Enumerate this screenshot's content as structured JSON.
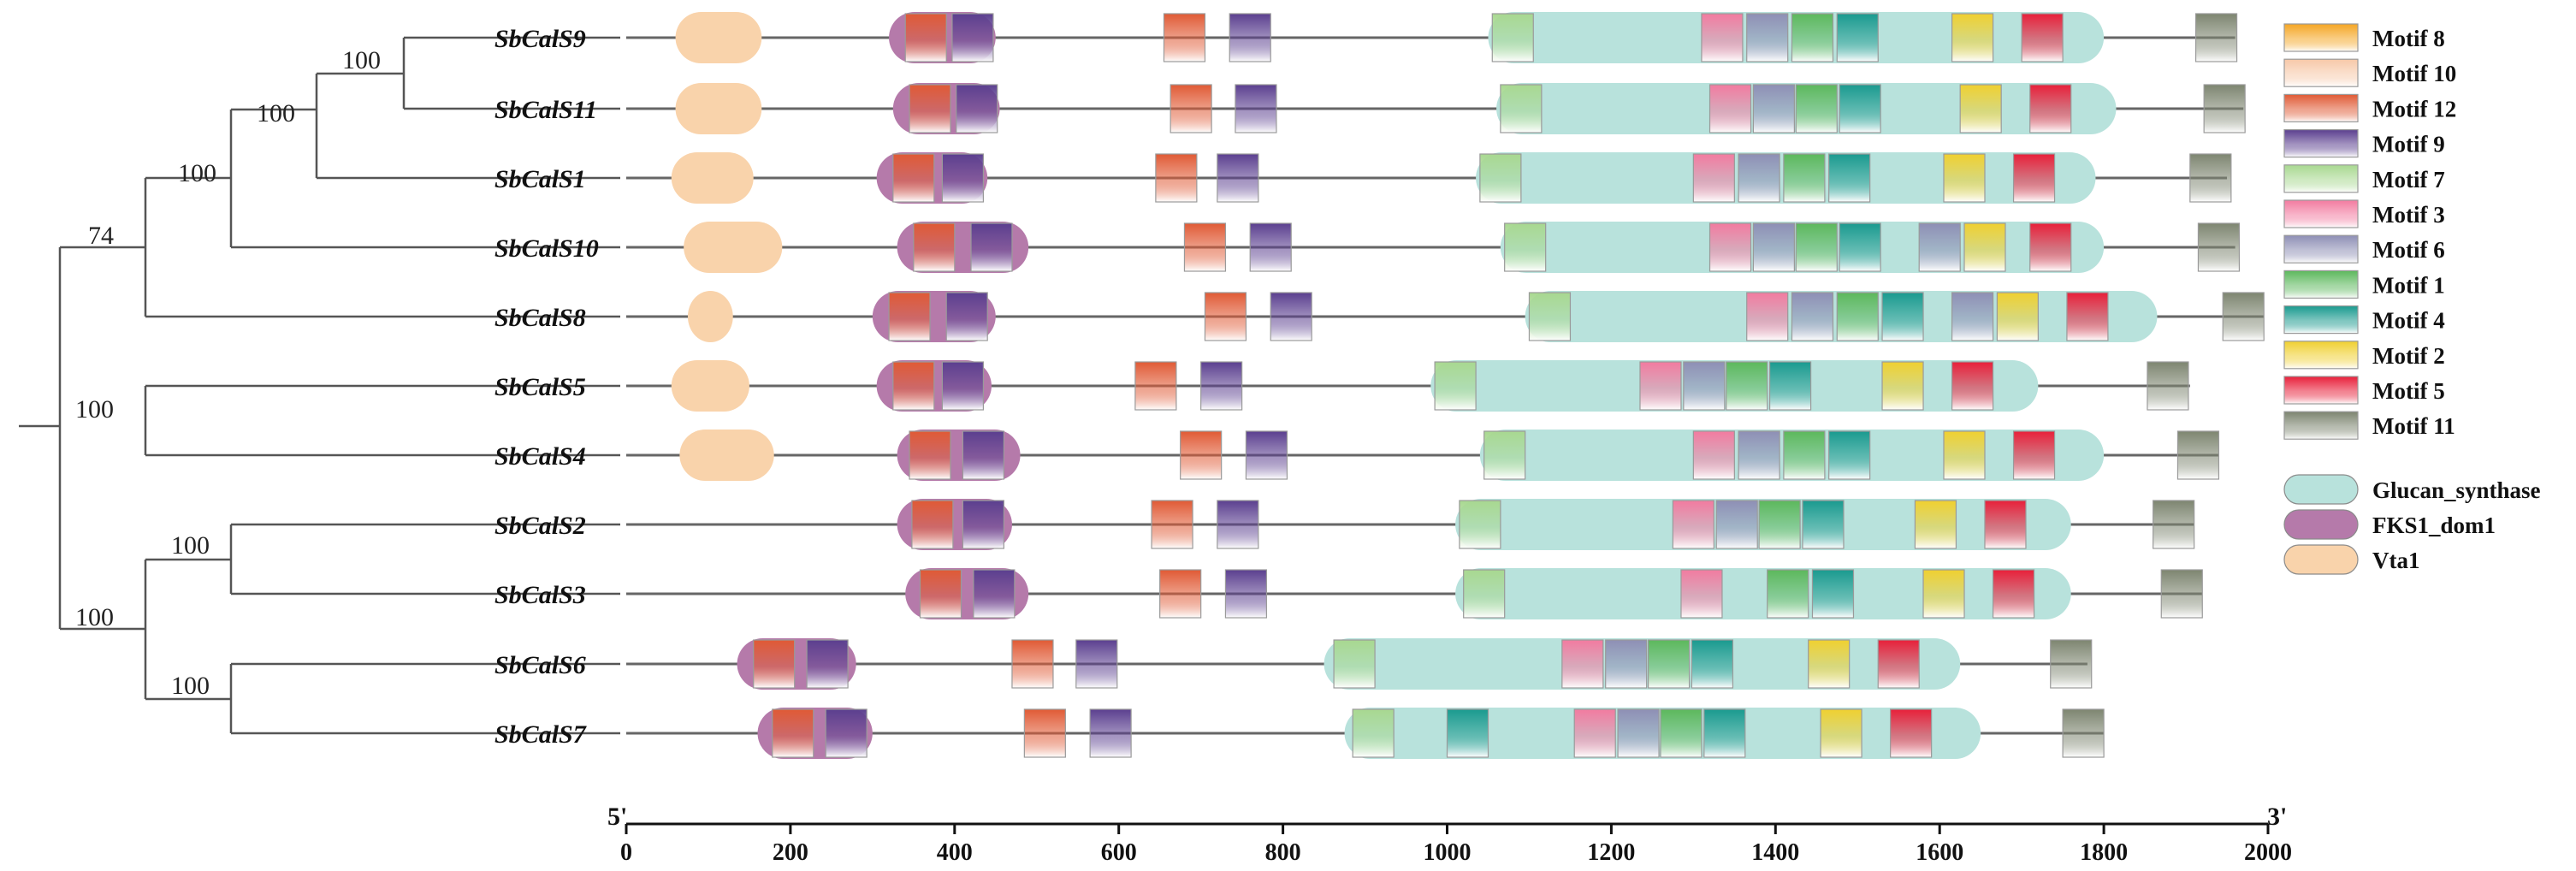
{
  "figure": {
    "axis": {
      "start": 0,
      "end": 2000,
      "tick_step": 200,
      "tick_labels": [
        "0",
        "200",
        "400",
        "600",
        "800",
        "1000",
        "1200",
        "1400",
        "1600",
        "1800",
        "2000"
      ],
      "five_prime_label": "5'",
      "three_prime_label": "3'"
    },
    "tree": {
      "bootstrap_values": {
        "node_s9_s11": "100",
        "node_s1": "100",
        "node_s10": "100",
        "node_s8": "74",
        "node_s5_s4": "100",
        "node_s2_s3": "100",
        "node_s6_s7": "100",
        "node_lower": "100"
      }
    },
    "legend": {
      "motifs": [
        {
          "name": "Motif 8",
          "color": "#f5a623"
        },
        {
          "name": "Motif 10",
          "color": "#f7c8a8"
        },
        {
          "name": "Motif 12",
          "color": "#e05a35"
        },
        {
          "name": "Motif 9",
          "color": "#5b3f8f"
        },
        {
          "name": "Motif 7",
          "color": "#a8d890"
        },
        {
          "name": "Motif 3",
          "color": "#f27ba0"
        },
        {
          "name": "Motif 6",
          "color": "#8e8fb5"
        },
        {
          "name": "Motif 1",
          "color": "#5cb85c"
        },
        {
          "name": "Motif 4",
          "color": "#1a9a8f"
        },
        {
          "name": "Motif 2",
          "color": "#f0d030"
        },
        {
          "name": "Motif 5",
          "color": "#e8203a"
        },
        {
          "name": "Motif 11",
          "color": "#7d8570"
        }
      ],
      "domains": [
        {
          "name": "Glucan_synthase",
          "color": "#b8e2dc"
        },
        {
          "name": "FKS1_dom1",
          "color": "#b57aaa"
        },
        {
          "name": "Vta1",
          "color": "#f9d3ab"
        }
      ]
    },
    "proteins": [
      {
        "name": "SbCalS9",
        "length": 1960,
        "domains": [
          {
            "type": "Vta1",
            "start": 60,
            "end": 165
          },
          {
            "type": "FKS1_dom1",
            "start": 320,
            "end": 450
          },
          {
            "type": "Glucan_synthase",
            "start": 1050,
            "end": 1800
          }
        ],
        "motifs": [
          {
            "m": "Motif 12",
            "pos": 340
          },
          {
            "m": "Motif 9",
            "pos": 397
          },
          {
            "m": "Motif 12",
            "pos": 655
          },
          {
            "m": "Motif 9",
            "pos": 735
          },
          {
            "m": "Motif 7",
            "pos": 1055
          },
          {
            "m": "Motif 3",
            "pos": 1310
          },
          {
            "m": "Motif 6",
            "pos": 1365
          },
          {
            "m": "Motif 1",
            "pos": 1420
          },
          {
            "m": "Motif 4",
            "pos": 1475
          },
          {
            "m": "Motif 2",
            "pos": 1615
          },
          {
            "m": "Motif 5",
            "pos": 1700
          },
          {
            "m": "Motif 11",
            "pos": 1912
          }
        ]
      },
      {
        "name": "SbCalS11",
        "length": 1970,
        "domains": [
          {
            "type": "Vta1",
            "start": 60,
            "end": 165
          },
          {
            "type": "FKS1_dom1",
            "start": 325,
            "end": 455
          },
          {
            "type": "Glucan_synthase",
            "start": 1060,
            "end": 1815
          }
        ],
        "motifs": [
          {
            "m": "Motif 12",
            "pos": 345
          },
          {
            "m": "Motif 9",
            "pos": 402
          },
          {
            "m": "Motif 12",
            "pos": 663
          },
          {
            "m": "Motif 9",
            "pos": 742
          },
          {
            "m": "Motif 7",
            "pos": 1065
          },
          {
            "m": "Motif 3",
            "pos": 1320
          },
          {
            "m": "Motif 6",
            "pos": 1373
          },
          {
            "m": "Motif 1",
            "pos": 1425
          },
          {
            "m": "Motif 4",
            "pos": 1478
          },
          {
            "m": "Motif 2",
            "pos": 1625
          },
          {
            "m": "Motif 5",
            "pos": 1710
          },
          {
            "m": "Motif 11",
            "pos": 1922
          }
        ]
      },
      {
        "name": "SbCalS1",
        "length": 1950,
        "domains": [
          {
            "type": "Vta1",
            "start": 55,
            "end": 155
          },
          {
            "type": "FKS1_dom1",
            "start": 305,
            "end": 440
          },
          {
            "type": "Glucan_synthase",
            "start": 1035,
            "end": 1790
          }
        ],
        "motifs": [
          {
            "m": "Motif 12",
            "pos": 325
          },
          {
            "m": "Motif 9",
            "pos": 385
          },
          {
            "m": "Motif 12",
            "pos": 645
          },
          {
            "m": "Motif 9",
            "pos": 720
          },
          {
            "m": "Motif 7",
            "pos": 1040
          },
          {
            "m": "Motif 3",
            "pos": 1300
          },
          {
            "m": "Motif 6",
            "pos": 1355
          },
          {
            "m": "Motif 1",
            "pos": 1410
          },
          {
            "m": "Motif 4",
            "pos": 1465
          },
          {
            "m": "Motif 2",
            "pos": 1605
          },
          {
            "m": "Motif 5",
            "pos": 1690
          },
          {
            "m": "Motif 11",
            "pos": 1905
          }
        ]
      },
      {
        "name": "SbCalS10",
        "length": 1960,
        "domains": [
          {
            "type": "Vta1",
            "start": 70,
            "end": 190
          },
          {
            "type": "FKS1_dom1",
            "start": 330,
            "end": 490
          },
          {
            "type": "Glucan_synthase",
            "start": 1065,
            "end": 1800
          }
        ],
        "motifs": [
          {
            "m": "Motif 12",
            "pos": 350
          },
          {
            "m": "Motif 9",
            "pos": 420
          },
          {
            "m": "Motif 12",
            "pos": 680
          },
          {
            "m": "Motif 9",
            "pos": 760
          },
          {
            "m": "Motif 7",
            "pos": 1070
          },
          {
            "m": "Motif 3",
            "pos": 1320
          },
          {
            "m": "Motif 6",
            "pos": 1373
          },
          {
            "m": "Motif 1",
            "pos": 1425
          },
          {
            "m": "Motif 4",
            "pos": 1478
          },
          {
            "m": "Motif 6",
            "pos": 1575
          },
          {
            "m": "Motif 2",
            "pos": 1630
          },
          {
            "m": "Motif 5",
            "pos": 1710
          },
          {
            "m": "Motif 11",
            "pos": 1915
          }
        ]
      },
      {
        "name": "SbCalS8",
        "length": 1995,
        "domains": [
          {
            "type": "Vta1",
            "start": 75,
            "end": 130
          },
          {
            "type": "FKS1_dom1",
            "start": 300,
            "end": 450
          },
          {
            "type": "Glucan_synthase",
            "start": 1095,
            "end": 1865
          }
        ],
        "motifs": [
          {
            "m": "Motif 12",
            "pos": 320
          },
          {
            "m": "Motif 9",
            "pos": 390
          },
          {
            "m": "Motif 12",
            "pos": 705
          },
          {
            "m": "Motif 9",
            "pos": 785
          },
          {
            "m": "Motif 7",
            "pos": 1100
          },
          {
            "m": "Motif 3",
            "pos": 1365
          },
          {
            "m": "Motif 6",
            "pos": 1420
          },
          {
            "m": "Motif 1",
            "pos": 1475
          },
          {
            "m": "Motif 4",
            "pos": 1530
          },
          {
            "m": "Motif 6",
            "pos": 1615
          },
          {
            "m": "Motif 2",
            "pos": 1670
          },
          {
            "m": "Motif 5",
            "pos": 1755
          },
          {
            "m": "Motif 11",
            "pos": 1945
          }
        ]
      },
      {
        "name": "SbCalS5",
        "length": 1905,
        "domains": [
          {
            "type": "Vta1",
            "start": 55,
            "end": 150
          },
          {
            "type": "FKS1_dom1",
            "start": 305,
            "end": 445
          },
          {
            "type": "Glucan_synthase",
            "start": 980,
            "end": 1720
          }
        ],
        "motifs": [
          {
            "m": "Motif 12",
            "pos": 325
          },
          {
            "m": "Motif 9",
            "pos": 385
          },
          {
            "m": "Motif 12",
            "pos": 620
          },
          {
            "m": "Motif 9",
            "pos": 700
          },
          {
            "m": "Motif 7",
            "pos": 985
          },
          {
            "m": "Motif 3",
            "pos": 1235
          },
          {
            "m": "Motif 6",
            "pos": 1288
          },
          {
            "m": "Motif 1",
            "pos": 1340
          },
          {
            "m": "Motif 4",
            "pos": 1393
          },
          {
            "m": "Motif 2",
            "pos": 1530
          },
          {
            "m": "Motif 5",
            "pos": 1615
          },
          {
            "m": "Motif 11",
            "pos": 1853
          }
        ]
      },
      {
        "name": "SbCalS4",
        "length": 1940,
        "domains": [
          {
            "type": "Vta1",
            "start": 65,
            "end": 180
          },
          {
            "type": "FKS1_dom1",
            "start": 330,
            "end": 480
          },
          {
            "type": "Glucan_synthase",
            "start": 1040,
            "end": 1800
          }
        ],
        "motifs": [
          {
            "m": "Motif 12",
            "pos": 345
          },
          {
            "m": "Motif 9",
            "pos": 410
          },
          {
            "m": "Motif 12",
            "pos": 675
          },
          {
            "m": "Motif 9",
            "pos": 755
          },
          {
            "m": "Motif 7",
            "pos": 1045
          },
          {
            "m": "Motif 3",
            "pos": 1300
          },
          {
            "m": "Motif 6",
            "pos": 1355
          },
          {
            "m": "Motif 1",
            "pos": 1410
          },
          {
            "m": "Motif 4",
            "pos": 1465
          },
          {
            "m": "Motif 2",
            "pos": 1605
          },
          {
            "m": "Motif 5",
            "pos": 1690
          },
          {
            "m": "Motif 11",
            "pos": 1890
          }
        ]
      },
      {
        "name": "SbCalS2",
        "length": 1910,
        "domains": [
          {
            "type": "FKS1_dom1",
            "start": 330,
            "end": 470
          },
          {
            "type": "Glucan_synthase",
            "start": 1010,
            "end": 1760
          }
        ],
        "motifs": [
          {
            "m": "Motif 12",
            "pos": 348
          },
          {
            "m": "Motif 9",
            "pos": 410
          },
          {
            "m": "Motif 12",
            "pos": 640
          },
          {
            "m": "Motif 9",
            "pos": 720
          },
          {
            "m": "Motif 7",
            "pos": 1015
          },
          {
            "m": "Motif 3",
            "pos": 1275
          },
          {
            "m": "Motif 6",
            "pos": 1328
          },
          {
            "m": "Motif 1",
            "pos": 1380
          },
          {
            "m": "Motif 4",
            "pos": 1433
          },
          {
            "m": "Motif 2",
            "pos": 1570
          },
          {
            "m": "Motif 5",
            "pos": 1655
          },
          {
            "m": "Motif 11",
            "pos": 1860
          }
        ]
      },
      {
        "name": "SbCalS3",
        "length": 1920,
        "domains": [
          {
            "type": "FKS1_dom1",
            "start": 340,
            "end": 490
          },
          {
            "type": "Glucan_synthase",
            "start": 1010,
            "end": 1760
          }
        ],
        "motifs": [
          {
            "m": "Motif 12",
            "pos": 358
          },
          {
            "m": "Motif 9",
            "pos": 423
          },
          {
            "m": "Motif 12",
            "pos": 650
          },
          {
            "m": "Motif 9",
            "pos": 730
          },
          {
            "m": "Motif 7",
            "pos": 1020
          },
          {
            "m": "Motif 3",
            "pos": 1285
          },
          {
            "m": "Motif 1",
            "pos": 1390
          },
          {
            "m": "Motif 4",
            "pos": 1445
          },
          {
            "m": "Motif 2",
            "pos": 1580
          },
          {
            "m": "Motif 5",
            "pos": 1665
          },
          {
            "m": "Motif 11",
            "pos": 1870
          }
        ]
      },
      {
        "name": "SbCalS6",
        "length": 1780,
        "domains": [
          {
            "type": "FKS1_dom1",
            "start": 135,
            "end": 280
          },
          {
            "type": "Glucan_synthase",
            "start": 850,
            "end": 1625
          }
        ],
        "motifs": [
          {
            "m": "Motif 12",
            "pos": 155
          },
          {
            "m": "Motif 9",
            "pos": 220
          },
          {
            "m": "Motif 12",
            "pos": 470
          },
          {
            "m": "Motif 9",
            "pos": 548
          },
          {
            "m": "Motif 7",
            "pos": 862
          },
          {
            "m": "Motif 3",
            "pos": 1140
          },
          {
            "m": "Motif 6",
            "pos": 1193
          },
          {
            "m": "Motif 1",
            "pos": 1245
          },
          {
            "m": "Motif 4",
            "pos": 1298
          },
          {
            "m": "Motif 2",
            "pos": 1440
          },
          {
            "m": "Motif 5",
            "pos": 1525
          },
          {
            "m": "Motif 11",
            "pos": 1735
          }
        ]
      },
      {
        "name": "SbCalS7",
        "length": 1800,
        "domains": [
          {
            "type": "FKS1_dom1",
            "start": 160,
            "end": 300
          },
          {
            "type": "Glucan_synthase",
            "start": 875,
            "end": 1650
          }
        ],
        "motifs": [
          {
            "m": "Motif 12",
            "pos": 178
          },
          {
            "m": "Motif 9",
            "pos": 243
          },
          {
            "m": "Motif 12",
            "pos": 485
          },
          {
            "m": "Motif 9",
            "pos": 565
          },
          {
            "m": "Motif 7",
            "pos": 885
          },
          {
            "m": "Motif 4",
            "pos": 1000
          },
          {
            "m": "Motif 3",
            "pos": 1155
          },
          {
            "m": "Motif 6",
            "pos": 1208
          },
          {
            "m": "Motif 1",
            "pos": 1260
          },
          {
            "m": "Motif 4",
            "pos": 1313
          },
          {
            "m": "Motif 2",
            "pos": 1455
          },
          {
            "m": "Motif 5",
            "pos": 1540
          },
          {
            "m": "Motif 11",
            "pos": 1750
          }
        ]
      }
    ]
  }
}
